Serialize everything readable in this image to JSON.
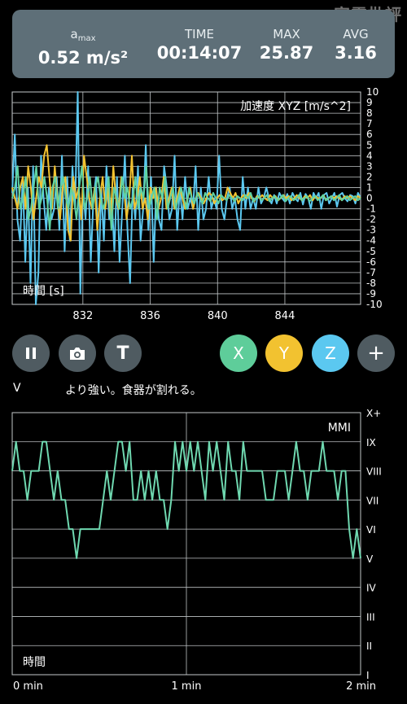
{
  "watermark": "家電批評",
  "stats": [
    {
      "label_main": "a",
      "label_sub": "max",
      "value": "0.52 m/s²"
    },
    {
      "label_main": "TIME",
      "label_sub": "",
      "value": "00:14:07"
    },
    {
      "label_main": "MAX",
      "label_sub": "",
      "value": "25.87"
    },
    {
      "label_main": "AVG",
      "label_sub": "",
      "value": "3.16"
    }
  ],
  "chart_data": [
    {
      "type": "line",
      "title": "加速度 XYZ [m/s^2]",
      "xlabel": "時間 [s]",
      "ylabel": "",
      "ylim": [
        -10,
        10
      ],
      "xlim": [
        827.8,
        848.5
      ],
      "x_ticks": [
        832,
        836,
        840,
        844
      ],
      "y_ticks": [
        10,
        9,
        8,
        7,
        6,
        5,
        4,
        3,
        2,
        1,
        0,
        -1,
        -2,
        -3,
        -4,
        -5,
        -6,
        -7,
        -8,
        -9,
        -10
      ],
      "grid": true,
      "series": [
        {
          "color": "#5bc8f0",
          "values": [
            0.5,
            6,
            -2,
            -4,
            2,
            -6,
            1,
            -8,
            3,
            -10,
            -7,
            4,
            0,
            -3,
            1,
            -2,
            -1,
            2,
            -3,
            4,
            -5,
            2,
            -4,
            3,
            -1,
            10,
            -9,
            1,
            -2,
            3,
            -6,
            0,
            2,
            -7,
            1,
            -4,
            3,
            -2,
            0,
            -5,
            2,
            -6,
            -1,
            4,
            -3,
            -8,
            1,
            -2,
            3,
            -4,
            -1,
            5,
            -3,
            2,
            -6,
            1,
            -2,
            -3,
            3,
            1,
            -2,
            -1,
            4,
            -3,
            1,
            -2,
            2,
            -1,
            0,
            -1,
            3,
            -3,
            1,
            -2,
            -1,
            2,
            -1,
            0,
            -1,
            4,
            -1,
            -2,
            0,
            1,
            -1,
            0,
            -2,
            -3,
            2,
            -1,
            1,
            -1,
            0,
            -1,
            1,
            -0.5,
            0,
            1,
            0,
            -0.5,
            0.3,
            -0.5,
            0.5,
            0,
            -0.3,
            0.4,
            -0.5,
            0.5,
            0,
            -0.3,
            0.5,
            -0.6,
            0.4,
            0,
            -1,
            0.5,
            0,
            0.5,
            -1,
            0.3,
            0.5,
            -0.5,
            0,
            0.5,
            -0.8,
            0.3,
            0.5,
            0,
            -0.3,
            0.3,
            0.2,
            -0.5,
            0.5,
            0
          ]
        },
        {
          "color": "#f2c230",
          "values": [
            1,
            0,
            -1,
            1,
            2,
            -1,
            3,
            1,
            -2,
            0,
            2,
            1,
            4,
            5,
            2,
            -1,
            3,
            0,
            -2,
            1,
            2,
            -3,
            -4,
            2,
            0,
            1,
            -2,
            4,
            2,
            0,
            -1,
            1,
            -3,
            0,
            2,
            -1,
            1,
            -2,
            3,
            0,
            -1,
            2,
            1,
            -2,
            0,
            4,
            -1,
            0,
            2,
            -1,
            0,
            -2,
            1,
            0,
            1,
            -1,
            0,
            2,
            -1,
            0,
            1,
            -1,
            0,
            1,
            0,
            -1,
            0,
            1,
            -1,
            0,
            0.5,
            0,
            -0.5,
            0,
            0.5,
            0.3,
            -0.5,
            0,
            0.3,
            -0.2,
            0,
            1,
            0.5,
            0,
            0.5,
            -0.5,
            0,
            0.3,
            0,
            0.5,
            0,
            -0.3,
            0.2,
            0,
            0.3,
            0,
            -0.2,
            0.3,
            0,
            0.2,
            -0.2,
            0,
            0.3,
            0,
            0.2,
            -0.2,
            0,
            0.3,
            0,
            -0.2,
            0.2,
            0,
            0.3,
            -0.2,
            0.2,
            0,
            0,
            0.3,
            -0.2,
            0,
            0.2,
            0,
            0.2,
            0,
            -0.2,
            0.2,
            0,
            0.2,
            0,
            -0.2,
            0.2,
            0
          ]
        },
        {
          "color": "#5fd3a2",
          "values": [
            0,
            1,
            3,
            -1,
            0,
            2,
            -2,
            -1,
            1,
            3,
            -1,
            0,
            2,
            0,
            -3,
            1,
            2,
            -1,
            1,
            2,
            0,
            -1,
            1,
            0,
            -2,
            1,
            3,
            -1,
            0,
            2,
            -1,
            1,
            2,
            0,
            -1,
            0,
            2,
            -3,
            1,
            0,
            -1,
            2,
            0,
            1,
            -1,
            0,
            2,
            -1,
            1,
            0,
            3,
            -1,
            0,
            1,
            -2,
            1,
            0,
            2,
            -1,
            0,
            1,
            -1,
            0,
            1,
            0,
            -1,
            1,
            0,
            -0.5,
            0.5,
            0,
            -0.5,
            0.5,
            0,
            -0.3,
            0.5,
            0,
            -0.5,
            0.3,
            0,
            -0.2,
            0.3,
            0,
            -0.3,
            0.2,
            0,
            -0.2,
            0.3,
            0,
            0.5,
            -0.3,
            0,
            0.2,
            -0.2,
            0,
            0.3,
            -0.3,
            0,
            0.2,
            -0.2,
            0,
            0.3,
            -0.3,
            0,
            0.2,
            -0.2,
            0,
            0.3,
            -0.2,
            0,
            0.2,
            -0.3,
            0,
            0.2,
            -0.2,
            0,
            0.3,
            -0.2,
            0,
            0.2,
            -0.2,
            0,
            0.3,
            -0.2,
            0,
            0.2,
            -0.2,
            0,
            0.2,
            -0.2,
            0
          ]
        }
      ]
    },
    {
      "type": "line",
      "title": "MMI",
      "xlabel": "時間",
      "ylabel": "",
      "ylim": [
        1,
        10
      ],
      "xlim": [
        0,
        2
      ],
      "x_tick_labels": [
        "0 min",
        "1 min",
        "2 min"
      ],
      "y_tick_labels": [
        "I",
        "II",
        "III",
        "IV",
        "V",
        "VI",
        "VII",
        "VIII",
        "IX",
        "X+"
      ],
      "grid": true,
      "series": [
        {
          "color": "#6fd8b0",
          "values": [
            8,
            9,
            8,
            8,
            7,
            8,
            8,
            8,
            9,
            9,
            8,
            7,
            8,
            7,
            7,
            6,
            6,
            5,
            6,
            6,
            6,
            6,
            6,
            6,
            7,
            8,
            7,
            8,
            9,
            9,
            8,
            9,
            7,
            7,
            8,
            7,
            8,
            7,
            8,
            7,
            7,
            6,
            7,
            9,
            8,
            9,
            8,
            9,
            8,
            9,
            8,
            7,
            9,
            8,
            9,
            8,
            7,
            9,
            8,
            8,
            7,
            9,
            8,
            8,
            8,
            8,
            8,
            7,
            7,
            7,
            8,
            8,
            8,
            7,
            8,
            9,
            8,
            8,
            7,
            8,
            8,
            8,
            9,
            8,
            8,
            8,
            7,
            8,
            8,
            6,
            5,
            6,
            5
          ]
        }
      ]
    }
  ],
  "buttons": {
    "pause": "pause-icon",
    "camera": "camera-icon",
    "text": "T",
    "x": "X",
    "y": "Y",
    "z": "Z",
    "add": "+"
  },
  "colors": {
    "x": "#5ecd9a",
    "y": "#f2c230",
    "z": "#5bc8f0",
    "gray": "#4f5b61"
  },
  "intensity": {
    "level": "V",
    "description": "より強い。食器が割れる。"
  }
}
